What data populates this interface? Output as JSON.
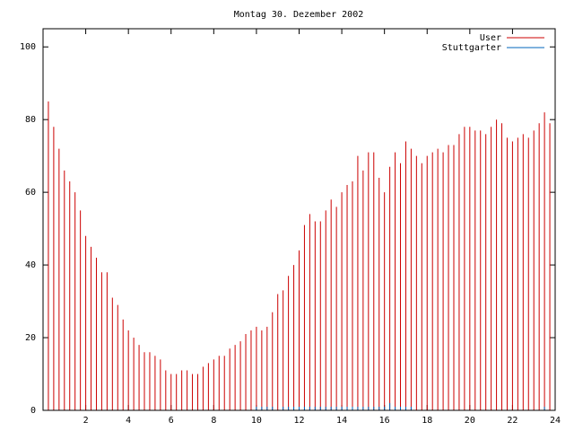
{
  "chart_data": {
    "type": "impulse",
    "title": "Montag 30. Dezember 2002",
    "x": [
      0,
      0.25,
      0.5,
      0.75,
      1,
      1.25,
      1.5,
      1.75,
      2,
      2.25,
      2.5,
      2.75,
      3,
      3.25,
      3.5,
      3.75,
      4,
      4.25,
      4.5,
      4.75,
      5,
      5.25,
      5.5,
      5.75,
      6,
      6.25,
      6.5,
      6.75,
      7,
      7.25,
      7.5,
      7.75,
      8,
      8.25,
      8.5,
      8.75,
      9,
      9.25,
      9.5,
      9.75,
      10,
      10.25,
      10.5,
      10.75,
      11,
      11.25,
      11.5,
      11.75,
      12,
      12.25,
      12.5,
      12.75,
      13,
      13.25,
      13.5,
      13.75,
      14,
      14.25,
      14.5,
      14.75,
      15,
      15.25,
      15.5,
      15.75,
      16,
      16.25,
      16.5,
      16.75,
      17,
      17.25,
      17.5,
      17.75,
      18,
      18.25,
      18.5,
      18.75,
      19,
      19.25,
      19.5,
      19.75,
      20,
      20.25,
      20.5,
      20.75,
      21,
      21.25,
      21.5,
      21.75,
      22,
      22.25,
      22.5,
      22.75,
      23,
      23.25,
      23.5,
      23.75
    ],
    "series": [
      {
        "name": "User",
        "color": "#cc0000",
        "values": [
          88,
          85,
          78,
          72,
          66,
          63,
          60,
          55,
          48,
          45,
          42,
          38,
          38,
          31,
          29,
          25,
          22,
          20,
          18,
          16,
          16,
          15,
          14,
          11,
          10,
          10,
          11,
          11,
          10,
          10,
          12,
          13,
          14,
          15,
          15,
          17,
          18,
          19,
          21,
          22,
          23,
          22,
          23,
          27,
          32,
          33,
          37,
          40,
          44,
          51,
          54,
          52,
          52,
          55,
          58,
          56,
          60,
          62,
          63,
          70,
          66,
          71,
          71,
          64,
          60,
          67,
          71,
          68,
          74,
          72,
          70,
          68,
          70,
          71,
          72,
          71,
          73,
          73,
          76,
          78,
          78,
          77,
          77,
          76,
          78,
          80,
          79,
          75,
          74,
          75,
          76,
          75,
          77,
          79,
          82,
          79
        ]
      },
      {
        "name": "Stuttgarter",
        "color": "#0066bb",
        "values": [
          0,
          0,
          0,
          0,
          0,
          0,
          0,
          0,
          0,
          0,
          0,
          0,
          0,
          0,
          0,
          0,
          0,
          0,
          0,
          0,
          0,
          0,
          0,
          0,
          0,
          0,
          0,
          0,
          0,
          0,
          0,
          0,
          0,
          0,
          0,
          0,
          0,
          0,
          0,
          0,
          1,
          1,
          1,
          1,
          0,
          1,
          1,
          1,
          1,
          1,
          1,
          1,
          1,
          1,
          1,
          1,
          1,
          1,
          1,
          1,
          1,
          1,
          1,
          1,
          1,
          2,
          1,
          1,
          1,
          1,
          0,
          0,
          0,
          0,
          0,
          0,
          0,
          0,
          0,
          0,
          0,
          0,
          0,
          0,
          0,
          0,
          0,
          0,
          0,
          0,
          0,
          0,
          0,
          0,
          1,
          0
        ]
      }
    ],
    "xlim": [
      0,
      24
    ],
    "xticks": [
      2,
      4,
      6,
      8,
      10,
      12,
      14,
      16,
      18,
      20,
      22,
      24
    ],
    "ylim": [
      0,
      105
    ],
    "yticks": [
      0,
      20,
      40,
      60,
      80,
      100
    ],
    "legend": "upper right"
  }
}
